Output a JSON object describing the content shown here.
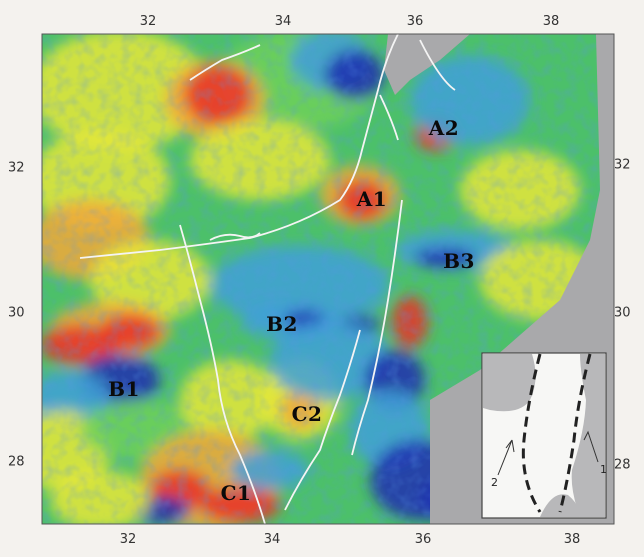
{
  "map": {
    "ticks": {
      "top": [
        "32",
        "34",
        "36",
        "38"
      ],
      "bottom": [
        "32",
        "34",
        "36",
        "38"
      ],
      "left": [
        "32",
        "30",
        "28"
      ],
      "right": [
        "32",
        "30",
        "28"
      ]
    },
    "region_labels": [
      "A1",
      "A2",
      "B1",
      "B2",
      "B3",
      "C1",
      "C2"
    ],
    "inset": {
      "labels": [
        "1",
        "2"
      ]
    },
    "colors": {
      "high": "#e8322a",
      "mid_high": "#f2a83a",
      "mid": "#e6e83a",
      "mid_low": "#6fd05a",
      "low": "#3fa0d8",
      "very_low": "#1c2fb0",
      "land_mask": "#a9a9ab",
      "coastline": "#f4f4f4"
    }
  }
}
